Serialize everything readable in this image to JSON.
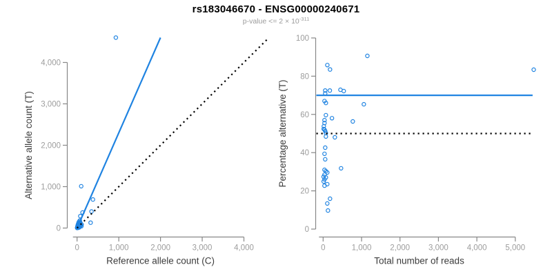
{
  "header": {
    "title": "rs183046670 - ENSG00000240671",
    "subtitle_prefix": "p-value <= 2 × 10",
    "subtitle_exponent": "-311"
  },
  "colors": {
    "accent_blue": "#1f83e1",
    "identity_black": "#000000",
    "axis_line": "#878787",
    "tick_label": "#9c9c9c",
    "axis_label": "#3c3c3c",
    "title": "#000000",
    "subtitle": "#9b9b9b",
    "background": "#ffffff"
  },
  "chart_data": [
    {
      "type": "scatter",
      "panel": "allele-counts",
      "xlabel": "Reference allele count (C)",
      "ylabel": "Alternative allele count (T)",
      "xlim": [
        0,
        4000
      ],
      "ylim": [
        0,
        4000
      ],
      "xticks": [
        0,
        1000,
        2000,
        3000,
        4000
      ],
      "yticks": [
        0,
        1000,
        2000,
        3000,
        4000
      ],
      "grid": false,
      "legend": "none",
      "points": [
        [
          930,
          4600
        ],
        [
          100,
          1010
        ],
        [
          380,
          690
        ],
        [
          345,
          400
        ],
        [
          130,
          375
        ],
        [
          78,
          288
        ],
        [
          325,
          130
        ],
        [
          2,
          3
        ],
        [
          3,
          8
        ],
        [
          5,
          2
        ],
        [
          5,
          15
        ],
        [
          8,
          30
        ],
        [
          10,
          5
        ],
        [
          10,
          22
        ],
        [
          12,
          45
        ],
        [
          15,
          10
        ],
        [
          15,
          60
        ],
        [
          18,
          35
        ],
        [
          20,
          80
        ],
        [
          22,
          18
        ],
        [
          25,
          55
        ],
        [
          28,
          100
        ],
        [
          30,
          8
        ],
        [
          32,
          70
        ],
        [
          35,
          125
        ],
        [
          38,
          28
        ],
        [
          40,
          90
        ],
        [
          45,
          150
        ],
        [
          48,
          45
        ],
        [
          52,
          15
        ],
        [
          55,
          110
        ],
        [
          60,
          70
        ],
        [
          65,
          180
        ],
        [
          70,
          35
        ],
        [
          75,
          140
        ],
        [
          85,
          60
        ],
        [
          95,
          100
        ],
        [
          105,
          45
        ],
        [
          110,
          85
        ]
      ],
      "lines": [
        {
          "name": "fit-line",
          "style": "solid",
          "color": "#1f83e1",
          "from": [
            0,
            0
          ],
          "to": [
            2000,
            4600
          ]
        },
        {
          "name": "identity-line",
          "style": "dotted",
          "color": "#000000",
          "from": [
            0,
            0
          ],
          "to": [
            4600,
            4600
          ]
        }
      ]
    },
    {
      "type": "scatter",
      "panel": "percentage-vs-reads",
      "xlabel": "Total number of reads",
      "ylabel": "Percentage alternative (T)",
      "xlim": [
        0,
        5000
      ],
      "ylim": [
        0,
        100
      ],
      "xticks": [
        0,
        1000,
        2000,
        3000,
        4000,
        5000
      ],
      "yticks": [
        0,
        20,
        40,
        60,
        80,
        100
      ],
      "grid": false,
      "legend": "none",
      "points": [
        [
          5480,
          83.4
        ],
        [
          1150,
          90.6
        ],
        [
          110,
          85.8
        ],
        [
          180,
          83.5
        ],
        [
          1060,
          65.3
        ],
        [
          54,
          72.5
        ],
        [
          54,
          71
        ],
        [
          175,
          72.5
        ],
        [
          450,
          72.9
        ],
        [
          537,
          72.2
        ],
        [
          36,
          67
        ],
        [
          72,
          66
        ],
        [
          72,
          59.6
        ],
        [
          230,
          58
        ],
        [
          772,
          56.3
        ],
        [
          36,
          57
        ],
        [
          36,
          55.5
        ],
        [
          18,
          53.8
        ],
        [
          15,
          52.4
        ],
        [
          36,
          52
        ],
        [
          54,
          51.3
        ],
        [
          72,
          50.2
        ],
        [
          72,
          48.4
        ],
        [
          305,
          48
        ],
        [
          54,
          42.6
        ],
        [
          36,
          39.4
        ],
        [
          54,
          36.5
        ],
        [
          467,
          31.8
        ],
        [
          36,
          31
        ],
        [
          72,
          30.3
        ],
        [
          108,
          29.6
        ],
        [
          36,
          28.5
        ],
        [
          12,
          27.4
        ],
        [
          72,
          27
        ],
        [
          36,
          26
        ],
        [
          14,
          24.9
        ],
        [
          108,
          23.5
        ],
        [
          36,
          22.7
        ],
        [
          180,
          15.9
        ],
        [
          108,
          13.4
        ],
        [
          126,
          9.7
        ]
      ],
      "lines": [
        {
          "name": "mean-percentage-line",
          "style": "solid",
          "color": "#1f83e1",
          "from": [
            0,
            70
          ],
          "to": [
            5450,
            70
          ]
        },
        {
          "name": "fifty-percent-line",
          "style": "dotted",
          "color": "#000000",
          "from": [
            0,
            50
          ],
          "to": [
            5400,
            50
          ]
        }
      ]
    }
  ]
}
